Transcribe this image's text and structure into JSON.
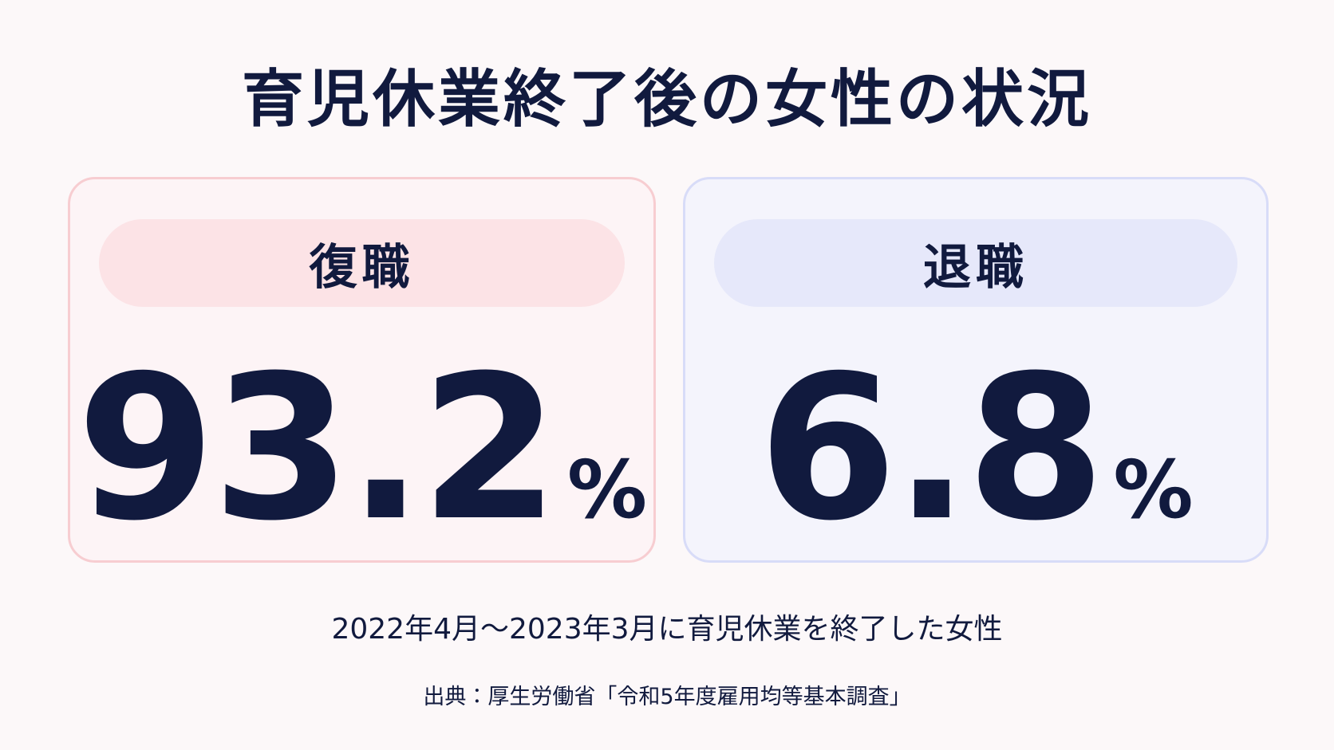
{
  "title": "育児休業終了後の女性の状況",
  "cards": [
    {
      "label": "復職",
      "value": "93.2",
      "unit": "%"
    },
    {
      "label": "退職",
      "value": "6.8",
      "unit": "%"
    }
  ],
  "note": "2022年4月～2023年3月に育児休業を終了した女性",
  "source": "出典：厚生労働省「令和5年度雇用均等基本調査」"
}
